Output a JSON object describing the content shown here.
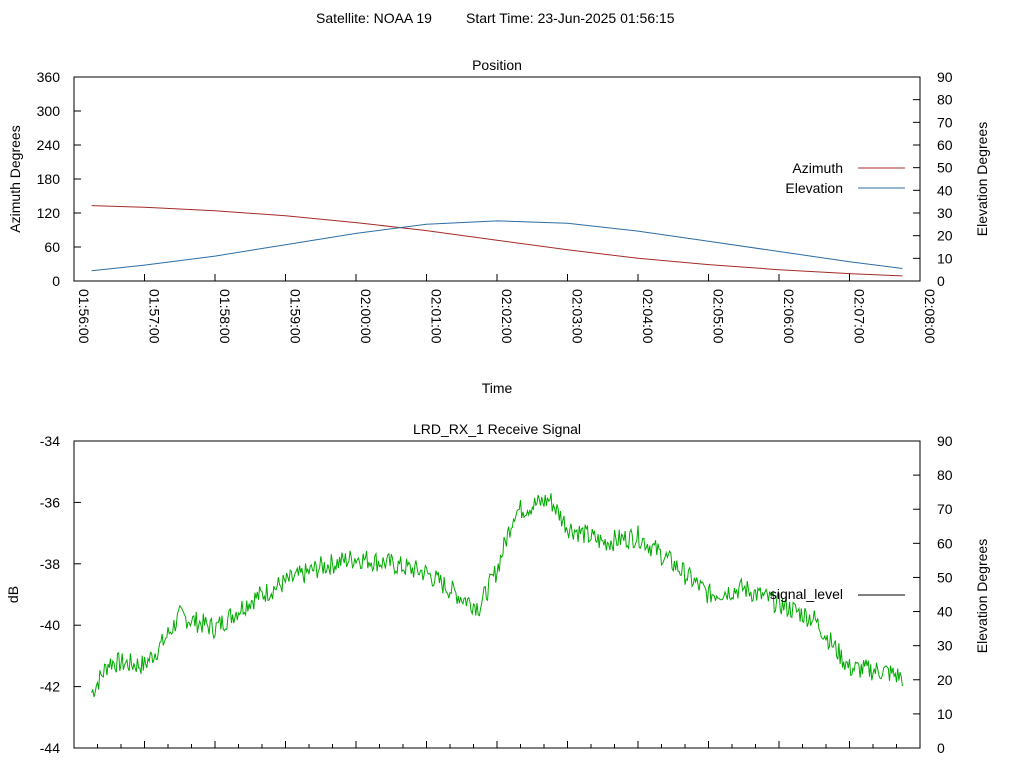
{
  "header": {
    "satellite": "Satellite: NOAA 19",
    "start_time": "Start Time: 23-Jun-2025 01:56:15"
  },
  "chart_data": [
    {
      "type": "line",
      "title": "Position",
      "xlabel": "Time",
      "ylabel": "Azimuth Degrees",
      "y2label": "Elevation Degrees",
      "xlim": [
        "01:56:00",
        "02:08:00"
      ],
      "ylim": [
        0,
        360
      ],
      "y2lim": [
        0,
        90
      ],
      "x_ticks": [
        "01:56:00",
        "01:57:00",
        "01:58:00",
        "01:59:00",
        "02:00:00",
        "02:01:00",
        "02:02:00",
        "02:03:00",
        "02:04:00",
        "02:05:00",
        "02:06:00",
        "02:07:00",
        "02:08:00"
      ],
      "y_ticks": [
        "0",
        "60",
        "120",
        "180",
        "240",
        "300",
        "360"
      ],
      "y2_ticks": [
        "0",
        "10",
        "20",
        "30",
        "40",
        "50",
        "60",
        "70",
        "80",
        "90"
      ],
      "legend_position": "right",
      "grid": false,
      "x": [
        "01:56:15",
        "01:57:00",
        "01:58:00",
        "01:59:00",
        "02:00:00",
        "02:01:00",
        "02:02:00",
        "02:03:00",
        "02:04:00",
        "02:05:00",
        "02:06:00",
        "02:07:00",
        "02:07:45"
      ],
      "series": [
        {
          "name": "Azimuth",
          "color": "#a52a2a",
          "axis": "y",
          "values": [
            133,
            130,
            124,
            115,
            103,
            89,
            72,
            55,
            40,
            29,
            20,
            13,
            9
          ]
        },
        {
          "name": "Elevation",
          "color": "#2e6da4",
          "axis": "y2",
          "values": [
            4.5,
            7,
            11,
            16,
            21,
            25,
            26.5,
            25.5,
            22,
            17.5,
            13,
            8.5,
            5.5
          ]
        }
      ]
    },
    {
      "type": "line",
      "title": "LRD_RX_1 Receive Signal",
      "ylabel": "dB",
      "y2label": "Elevation Degrees",
      "ylim": [
        -44,
        -34
      ],
      "y2lim": [
        0,
        90
      ],
      "y_ticks": [
        "-44",
        "-42",
        "-40",
        "-38",
        "-36",
        "-34"
      ],
      "y2_ticks": [
        "0",
        "10",
        "20",
        "30",
        "40",
        "50",
        "60",
        "70",
        "80",
        "90"
      ],
      "legend_position": "right",
      "grid": false,
      "x": [
        "01:56:15",
        "01:56:30",
        "01:57:00",
        "01:57:15",
        "01:57:30",
        "01:58:00",
        "01:58:30",
        "01:59:00",
        "01:59:30",
        "02:00:00",
        "02:00:30",
        "02:01:00",
        "02:01:30",
        "02:01:45",
        "02:02:00",
        "02:02:15",
        "02:02:30",
        "02:02:45",
        "02:03:00",
        "02:03:30",
        "02:04:00",
        "02:04:30",
        "02:05:00",
        "02:05:30",
        "02:06:00",
        "02:06:30",
        "02:07:00",
        "02:07:30",
        "02:07:45"
      ],
      "series": [
        {
          "name": "signal_level",
          "color": "#00aa00",
          "values": [
            -42.2,
            -41.2,
            -41.3,
            -40.6,
            -39.7,
            -40.1,
            -39.2,
            -38.6,
            -38.1,
            -37.8,
            -38.0,
            -38.3,
            -39.1,
            -39.4,
            -38.2,
            -36.3,
            -36.1,
            -35.9,
            -36.8,
            -37.3,
            -37.1,
            -38.0,
            -39.0,
            -38.8,
            -39.3,
            -39.8,
            -41.4,
            -41.5,
            -41.7
          ]
        }
      ]
    }
  ]
}
